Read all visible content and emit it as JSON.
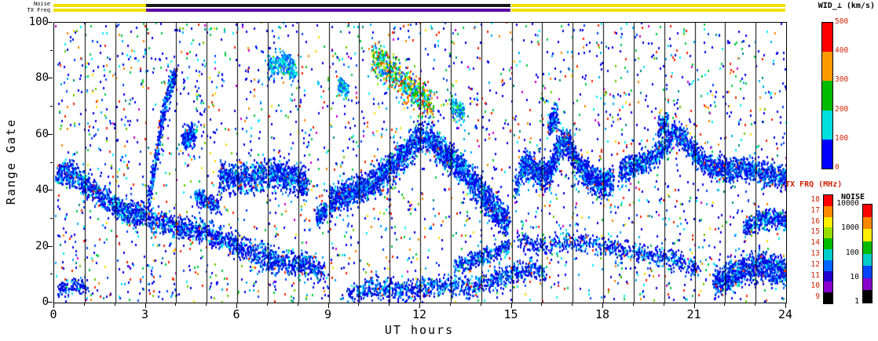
{
  "strips": {
    "noise_label": "Noise",
    "txfreq_label": "TX Freq",
    "noise_segments": [
      {
        "start": 0,
        "end": 3.05,
        "color": "#f0e000"
      },
      {
        "start": 3.05,
        "end": 15,
        "color": "#1a1a1a"
      },
      {
        "start": 15,
        "end": 24,
        "color": "#f0e000"
      }
    ],
    "txfreq_segments": [
      {
        "start": 0,
        "end": 3.05,
        "color": "#f0e000"
      },
      {
        "start": 3.05,
        "end": 15,
        "color": "#5b00a5"
      },
      {
        "start": 15,
        "end": 24,
        "color": "#f0e000"
      }
    ]
  },
  "chart_data": {
    "type": "heatmap",
    "title": "",
    "xlabel": "UT hours",
    "ylabel": "Range Gate",
    "xlim": [
      0,
      24
    ],
    "ylim": [
      0,
      100
    ],
    "x_major_ticks": [
      0,
      3,
      6,
      9,
      12,
      15,
      18,
      21,
      24
    ],
    "x_minor_step": 1,
    "y_major_ticks": [
      0,
      20,
      40,
      60,
      80,
      100
    ],
    "y_minor_step": 10,
    "hour_gridlines": true,
    "colorbars": [
      {
        "id": "wid",
        "title": "WID_⊥ (km/s)",
        "tick_labels_top_to_bottom": [
          "500",
          "400",
          "300",
          "200",
          "100",
          "0"
        ],
        "segment_colors_top_to_bottom": [
          "#ff0000",
          "#ff9900",
          "#00bb00",
          "#00dede",
          "#0000ff"
        ],
        "tick_text_color": "#cc2200",
        "title_color": "#000000"
      },
      {
        "id": "txfrq",
        "title": "TX FRQ (MHz)",
        "tick_labels_top_to_bottom": [
          "18",
          "17",
          "16",
          "15",
          "14",
          "13",
          "12",
          "11",
          "10",
          "9"
        ],
        "segment_colors_top_to_bottom": [
          "#ff0000",
          "#ff8800",
          "#ffee00",
          "#99dd00",
          "#00bb00",
          "#00cccc",
          "#0066ff",
          "#2200cc",
          "#8800cc",
          "#000000"
        ],
        "tick_text_color": "#cc2200",
        "title_color": "#cc2200"
      },
      {
        "id": "noise",
        "title": "NOISE",
        "tick_labels_top_to_bottom": [
          "10000",
          "1000",
          "100",
          "10",
          "1"
        ],
        "segment_colors_top_to_bottom": [
          "#ff0000",
          "#ff8800",
          "#ffee00",
          "#00bb00",
          "#00cccc",
          "#0044ff",
          "#8800cc",
          "#000000"
        ],
        "tick_text_color": "#000000",
        "title_color": "#000000"
      }
    ],
    "seed": 1337,
    "speck_size": [
      2,
      3
    ],
    "palettes": {
      "bg": [
        [
          "#0000ee",
          0.34
        ],
        [
          "#0044ff",
          0.08
        ],
        [
          "#00aaff",
          0.08
        ],
        [
          "#00eeff",
          0.08
        ],
        [
          "#00cc44",
          0.1
        ],
        [
          "#66cc00",
          0.04
        ],
        [
          "#ff2200",
          0.1
        ],
        [
          "#ff8800",
          0.05
        ],
        [
          "#ffdd00",
          0.05
        ],
        [
          "#cc00cc",
          0.04
        ],
        [
          "#008888",
          0.04
        ]
      ],
      "blue": [
        [
          "#0000ee",
          0.4
        ],
        [
          "#0022cc",
          0.18
        ],
        [
          "#0055ff",
          0.16
        ],
        [
          "#0099ff",
          0.1
        ],
        [
          "#00ccff",
          0.07
        ],
        [
          "#00ffff",
          0.05
        ],
        [
          "#00bb66",
          0.02
        ],
        [
          "#ff3300",
          0.02
        ]
      ],
      "bluecyan": [
        [
          "#0055ff",
          0.3
        ],
        [
          "#00aaff",
          0.3
        ],
        [
          "#00ffff",
          0.22
        ],
        [
          "#00cc88",
          0.1
        ],
        [
          "#44dd00",
          0.08
        ]
      ],
      "mixed_top": [
        [
          "#00bb00",
          0.26
        ],
        [
          "#00ffff",
          0.18
        ],
        [
          "#0066ff",
          0.22
        ],
        [
          "#aaee00",
          0.08
        ],
        [
          "#ffee00",
          0.08
        ],
        [
          "#ff8800",
          0.08
        ],
        [
          "#ff2200",
          0.1
        ]
      ]
    },
    "background_scatter": {
      "count": 3000,
      "palette": "bg"
    },
    "bands": [
      {
        "pts": [
          [
            0.05,
            46
          ],
          [
            0.6,
            46
          ],
          [
            1.0,
            42
          ],
          [
            1.5,
            38
          ],
          [
            2.0,
            34
          ],
          [
            2.6,
            31
          ],
          [
            3.0,
            32
          ]
        ],
        "hw": 4,
        "count": 900,
        "palette": "blue"
      },
      {
        "pts": [
          [
            3.05,
            34
          ],
          [
            3.3,
            50
          ],
          [
            3.5,
            65
          ],
          [
            3.75,
            76
          ],
          [
            3.95,
            82
          ]
        ],
        "hw": 3.5,
        "count": 380,
        "palette": "blue"
      },
      {
        "pts": [
          [
            3.1,
            29
          ],
          [
            4.0,
            27
          ],
          [
            5.0,
            25
          ],
          [
            5.6,
            22
          ],
          [
            6.2,
            19
          ],
          [
            7.0,
            16
          ],
          [
            7.6,
            14
          ],
          [
            8.2,
            13
          ],
          [
            8.8,
            12
          ]
        ],
        "hw": 4,
        "count": 1300,
        "palette": "blue"
      },
      {
        "pts": [
          [
            5.4,
            45
          ],
          [
            6.0,
            44
          ],
          [
            6.6,
            45
          ],
          [
            7.2,
            46
          ],
          [
            7.8,
            44
          ],
          [
            8.3,
            42
          ]
        ],
        "hw": 5,
        "count": 1000,
        "palette": "blue"
      },
      {
        "pts": [
          [
            4.2,
            58
          ],
          [
            4.6,
            60
          ]
        ],
        "hw": 4,
        "count": 200,
        "palette": "blue"
      },
      {
        "pts": [
          [
            7.0,
            83
          ],
          [
            7.5,
            86
          ],
          [
            7.9,
            82
          ]
        ],
        "hw": 4,
        "count": 260,
        "palette": "bluecyan"
      },
      {
        "pts": [
          [
            10.4,
            88
          ],
          [
            10.9,
            83
          ],
          [
            11.4,
            78
          ],
          [
            11.9,
            74
          ],
          [
            12.4,
            70
          ]
        ],
        "hw": 6,
        "count": 650,
        "palette": "mixed_top"
      },
      {
        "pts": [
          [
            9.0,
            36
          ],
          [
            9.6,
            38
          ],
          [
            10.2,
            41
          ],
          [
            10.8,
            46
          ],
          [
            11.4,
            52
          ],
          [
            12.0,
            59
          ],
          [
            12.4,
            57
          ],
          [
            12.9,
            52
          ],
          [
            13.4,
            47
          ],
          [
            13.9,
            40
          ],
          [
            14.4,
            33
          ],
          [
            14.9,
            28
          ]
        ],
        "hw": 5.5,
        "count": 2600,
        "palette": "blue"
      },
      {
        "pts": [
          [
            9.6,
            3
          ],
          [
            10.4,
            5
          ],
          [
            11.2,
            4
          ],
          [
            12.0,
            5
          ],
          [
            12.8,
            6
          ],
          [
            13.6,
            5
          ],
          [
            14.4,
            8
          ],
          [
            15.0,
            10
          ],
          [
            15.6,
            12
          ],
          [
            16.1,
            10
          ]
        ],
        "hw": 3.5,
        "count": 1000,
        "palette": "blue"
      },
      {
        "pts": [
          [
            13.1,
            13
          ],
          [
            13.7,
            15
          ],
          [
            14.3,
            17
          ],
          [
            14.9,
            20
          ]
        ],
        "hw": 3,
        "count": 300,
        "palette": "blue"
      },
      {
        "pts": [
          [
            15.1,
            40
          ],
          [
            15.4,
            50
          ],
          [
            15.8,
            46
          ],
          [
            16.2,
            45
          ],
          [
            16.5,
            55
          ],
          [
            16.8,
            58
          ],
          [
            17.1,
            50
          ],
          [
            17.5,
            45
          ],
          [
            17.9,
            42
          ],
          [
            18.3,
            44
          ]
        ],
        "hw": 5,
        "count": 1500,
        "palette": "blue"
      },
      {
        "pts": [
          [
            15.2,
            22
          ],
          [
            16.0,
            20
          ],
          [
            17.0,
            22
          ],
          [
            18.0,
            20
          ],
          [
            19.0,
            18
          ],
          [
            20.0,
            16
          ],
          [
            20.6,
            14
          ],
          [
            21.1,
            12
          ]
        ],
        "hw": 3.5,
        "count": 650,
        "palette": "blue"
      },
      {
        "pts": [
          [
            18.5,
            46
          ],
          [
            19.0,
            49
          ],
          [
            19.5,
            51
          ],
          [
            20.0,
            55
          ],
          [
            20.3,
            61
          ],
          [
            20.7,
            57
          ],
          [
            21.1,
            51
          ],
          [
            21.6,
            48
          ],
          [
            22.1,
            47
          ],
          [
            22.7,
            48
          ],
          [
            23.2,
            46
          ],
          [
            23.7,
            45
          ],
          [
            24,
            44
          ]
        ],
        "hw": 4,
        "count": 1700,
        "palette": "blue"
      },
      {
        "pts": [
          [
            21.6,
            7
          ],
          [
            22.1,
            9
          ],
          [
            22.6,
            12
          ],
          [
            23.1,
            13
          ],
          [
            23.6,
            12
          ],
          [
            24,
            10
          ]
        ],
        "hw": 5,
        "count": 1000,
        "palette": "blue"
      },
      {
        "pts": [
          [
            22.6,
            26
          ],
          [
            23.1,
            29
          ],
          [
            23.6,
            30
          ],
          [
            24,
            28
          ]
        ],
        "hw": 3.5,
        "count": 350,
        "palette": "blue"
      },
      {
        "pts": [
          [
            16.2,
            63
          ],
          [
            16.45,
            67
          ]
        ],
        "hw": 4,
        "count": 150,
        "palette": "blue"
      },
      {
        "pts": [
          [
            19.8,
            62
          ],
          [
            20.1,
            65
          ]
        ],
        "hw": 3,
        "count": 120,
        "palette": "blue"
      },
      {
        "pts": [
          [
            0.1,
            4
          ],
          [
            0.6,
            6
          ],
          [
            1.1,
            5
          ]
        ],
        "hw": 3,
        "count": 120,
        "palette": "blue"
      },
      {
        "pts": [
          [
            4.6,
            38
          ],
          [
            5.0,
            36
          ],
          [
            5.4,
            34
          ]
        ],
        "hw": 3,
        "count": 200,
        "palette": "blue"
      },
      {
        "pts": [
          [
            8.6,
            30
          ],
          [
            8.9,
            33
          ]
        ],
        "hw": 3,
        "count": 150,
        "palette": "blue"
      },
      {
        "pts": [
          [
            9.3,
            78
          ],
          [
            9.6,
            75
          ]
        ],
        "hw": 3,
        "count": 100,
        "palette": "bluecyan"
      },
      {
        "pts": [
          [
            13.0,
            70
          ],
          [
            13.4,
            67
          ]
        ],
        "hw": 4,
        "count": 120,
        "palette": "bluecyan"
      }
    ]
  }
}
